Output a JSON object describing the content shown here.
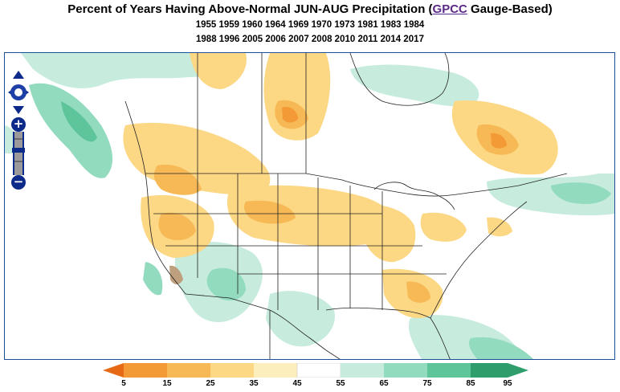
{
  "title": {
    "prefix": "Percent of Years Having Above-Normal JUN-AUG Precipitation (",
    "link_text": "GPCC",
    "suffix": " Gauge-Based)"
  },
  "years": {
    "line1": "1955 1959 1960 1964 1969 1970 1973 1981 1983 1984",
    "line2": "1988 1996 2005 2006 2007 2008 2010 2011 2014 2017"
  },
  "map": {
    "colors": {
      "c5": "#e66a16",
      "c15": "#f39a36",
      "c25": "#f7b955",
      "c35": "#fcd784",
      "c45": "#fdeebd",
      "c55": "#ffffff",
      "c65": "#c7ecdd",
      "c75": "#92dbbf",
      "c85": "#5ec59b",
      "c95": "#2f9e6c",
      "brown": "#bfa07e"
    },
    "controls": {
      "pan": "pan-control-icon",
      "zoom_in": "+",
      "zoom_out": "−"
    }
  },
  "legend": {
    "labels": [
      "5",
      "15",
      "25",
      "35",
      "45",
      "55",
      "65",
      "75",
      "85",
      "95"
    ]
  }
}
